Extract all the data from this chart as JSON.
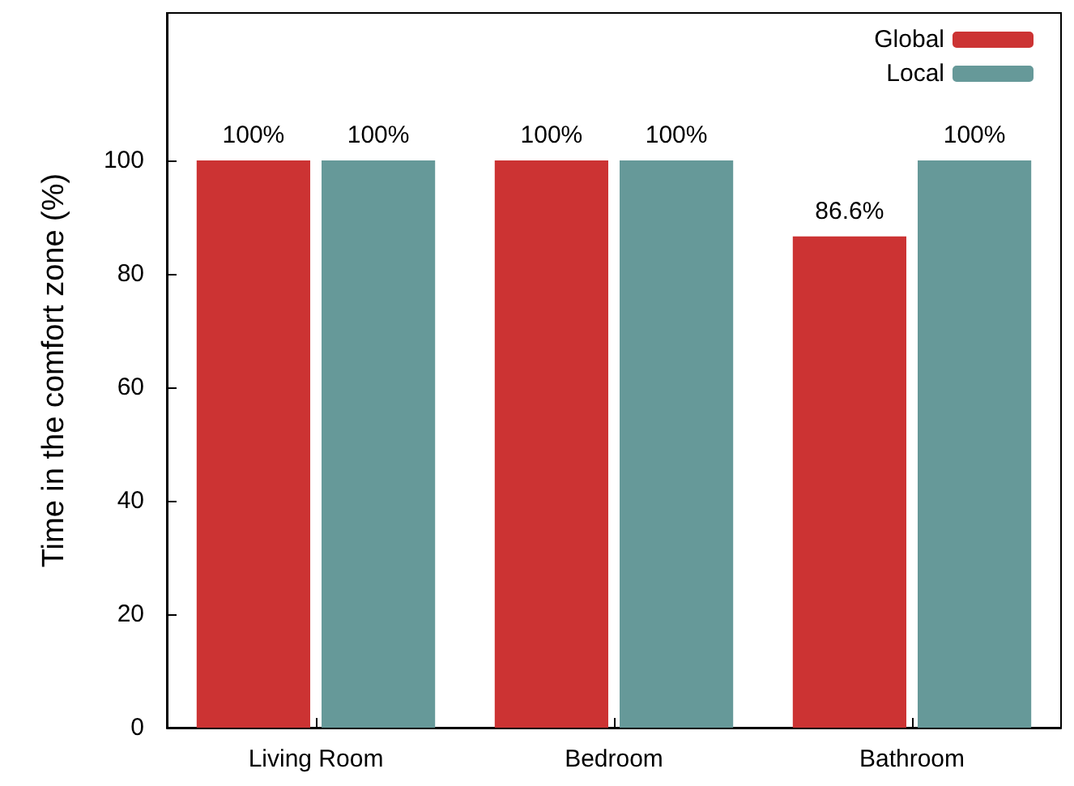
{
  "chart_data": {
    "type": "bar",
    "ylabel": "Time in the comfort zone (%)",
    "categories": [
      "Living Room",
      "Bedroom",
      "Bathroom"
    ],
    "series": [
      {
        "name": "Global",
        "color": "#cc3333",
        "values": [
          100,
          100,
          86.6
        ],
        "value_labels": [
          "100%",
          "100%",
          "86.6%"
        ]
      },
      {
        "name": "Local",
        "color": "#669999",
        "values": [
          100,
          100,
          100
        ],
        "value_labels": [
          "100%",
          "100%",
          "100%"
        ]
      }
    ],
    "ylim": [
      0,
      126
    ],
    "yticks": [
      0,
      20,
      40,
      60,
      80,
      100
    ],
    "grid": false,
    "legend": "top right"
  }
}
